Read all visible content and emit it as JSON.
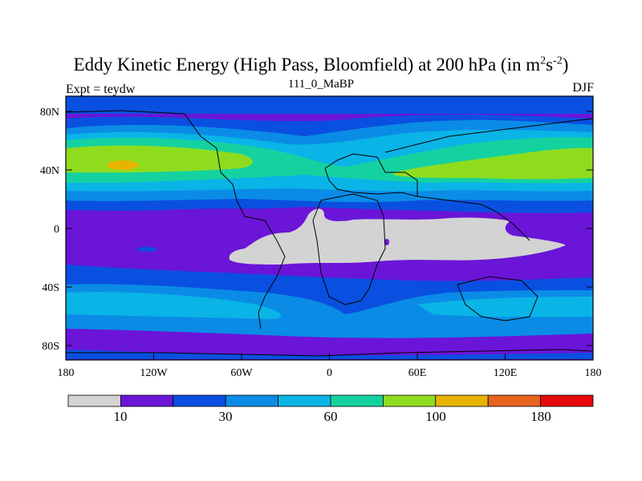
{
  "title": {
    "main": "Eddy Kinetic Energy (High Pass, Bloomfield) at 200 hPa (in m",
    "sup1": "2",
    "mid": "s",
    "sup2": "-2",
    "end": ")"
  },
  "subtitle": "111_0_MaBP",
  "left_label": "Expt = teydw",
  "right_label": "DJF",
  "map": {
    "projection": "cylindrical equidistant",
    "lon_range": [
      -180,
      180
    ],
    "lat_range": [
      -90,
      90
    ],
    "lat_ticks": [
      "80N",
      "40N",
      "0",
      "40S",
      "80S"
    ],
    "lon_ticks": [
      "180",
      "120W",
      "60W",
      "0",
      "60E",
      "120E",
      "180"
    ],
    "colors": {
      "grey": "#d3d3d3",
      "purple": "#6a15d8",
      "blue": "#0a50e0",
      "mid_blue": "#0a8ce6",
      "cyan": "#0ab4e6",
      "teal": "#14d2a0",
      "green": "#8fdc1e",
      "yellow": "#e6b400",
      "orange": "#e6641e"
    }
  },
  "colorbar": {
    "colors": [
      "#d3d3d3",
      "#6a15d8",
      "#0a50e0",
      "#0a8ce6",
      "#0ab4e6",
      "#14d2a0",
      "#8fdc1e",
      "#e6b400",
      "#e6641e",
      "#e60a0a"
    ],
    "labels": [
      "10",
      "30",
      "60",
      "100",
      "180"
    ]
  }
}
